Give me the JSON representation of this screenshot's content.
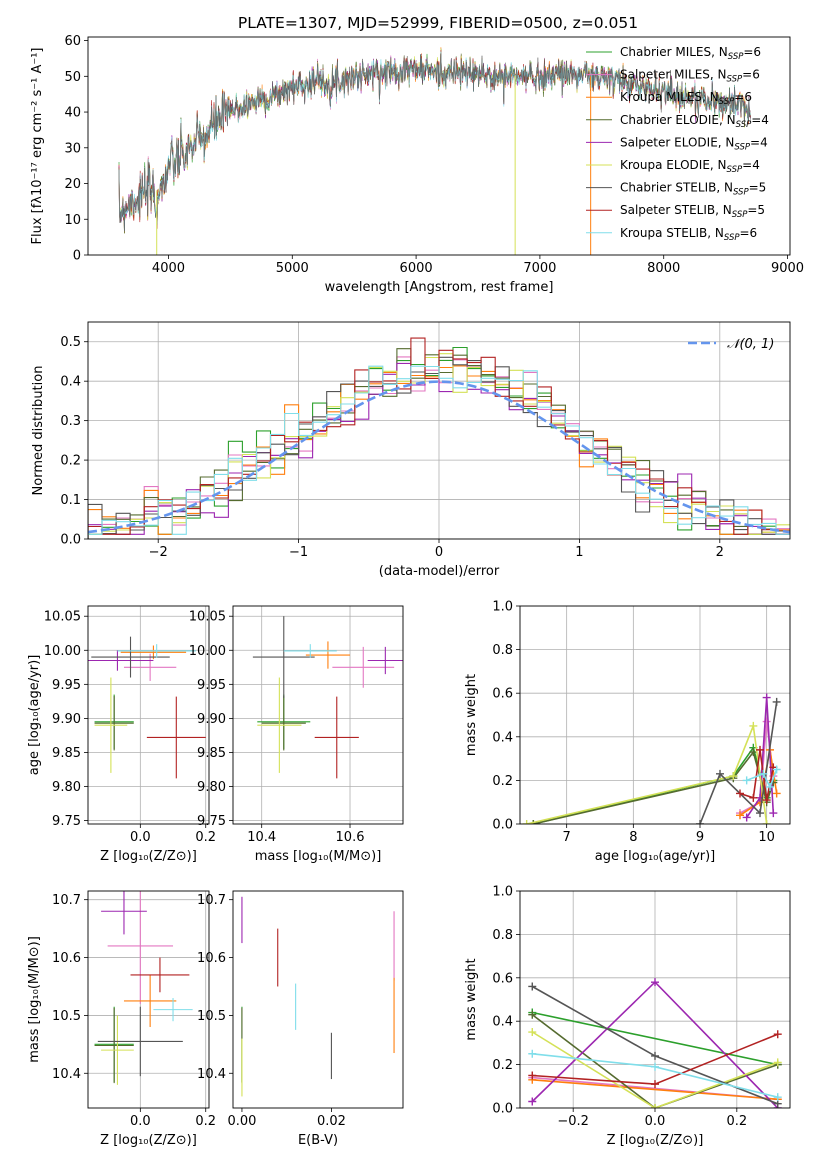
{
  "figure_title": "PLATE=1307, MJD=52999, FIBERID=0500, z=0.051",
  "model_colors": [
    "#2ca02c",
    "#e377c2",
    "#ff7f0e",
    "#556b2f",
    "#9c27b0",
    "#d4e157",
    "#555555",
    "#b22222",
    "#80deea"
  ],
  "chart_data": [
    {
      "id": "spectrum",
      "type": "line",
      "title": "PLATE=1307, MJD=52999, FIBERID=0500, z=0.051",
      "xlabel": "wavelength [Angstrom, rest frame]",
      "ylabel": "Flux [fλ10⁻¹⁷ erg cm⁻² s⁻¹ A⁻¹]",
      "xlim": [
        3350,
        9020
      ],
      "ylim": [
        0,
        61
      ],
      "xticks": [
        "4000",
        "5000",
        "6000",
        "7000",
        "8000",
        "9000"
      ],
      "yticks": [
        "0",
        "10",
        "20",
        "30",
        "40",
        "50",
        "60"
      ],
      "grid": false,
      "legend_position": "right",
      "legend": [
        {
          "label": "Chabrier MILES, N",
          "sub": "SSP",
          "tail": "=6"
        },
        {
          "label": "Salpeter MILES, N",
          "sub": "SSP",
          "tail": "=6"
        },
        {
          "label": "Kroupa MILES, N",
          "sub": "SSP",
          "tail": "=6"
        },
        {
          "label": "Chabrier ELODIE, N",
          "sub": "SSP",
          "tail": "=4"
        },
        {
          "label": "Salpeter ELODIE, N",
          "sub": "SSP",
          "tail": "=4"
        },
        {
          "label": "Kroupa ELODIE, N",
          "sub": "SSP",
          "tail": "=4"
        },
        {
          "label": "Chabrier STELIB, N",
          "sub": "SSP",
          "tail": "=5"
        },
        {
          "label": "Salpeter STELIB, N",
          "sub": "SSP",
          "tail": "=5"
        },
        {
          "label": "Kroupa STELIB, N",
          "sub": "SSP",
          "tail": "=6"
        }
      ],
      "continuum": {
        "x": [
          3600,
          3700,
          3800,
          3900,
          3950,
          4000,
          4100,
          4200,
          4300,
          4400,
          4500,
          4700,
          4900,
          5000,
          5100,
          5200,
          5300,
          5500,
          5700,
          5900,
          6000,
          6200,
          6400,
          6600,
          6800,
          7000,
          7200,
          7400,
          7600,
          7800,
          8000,
          8200,
          8400,
          8600,
          8700
        ],
        "y": [
          12,
          15,
          17,
          18,
          19,
          25,
          27,
          31,
          33,
          38,
          40,
          43,
          45,
          47,
          48,
          49,
          48,
          50,
          51,
          52,
          52,
          51,
          51,
          50,
          50,
          50,
          51,
          50,
          49,
          47,
          46,
          44,
          43,
          42,
          41
        ]
      },
      "dropouts": [
        {
          "x": 3905,
          "y": 0,
          "series": 5
        },
        {
          "x": 6800,
          "y": 0,
          "series": 5
        },
        {
          "x": 7410,
          "y": 0,
          "series": 2
        }
      ]
    },
    {
      "id": "residuals",
      "type": "histogram",
      "xlabel": "(data-model)/error",
      "ylabel": "Normed distribution",
      "xlim": [
        -2.5,
        2.5
      ],
      "ylim": [
        0,
        0.55
      ],
      "xticks": [
        "−2",
        "−1",
        "0",
        "1",
        "2"
      ],
      "yticks": [
        "0.0",
        "0.1",
        "0.2",
        "0.3",
        "0.4",
        "0.5"
      ],
      "grid": true,
      "legend_position": "top-right",
      "legend": "𝒩(0, 1)",
      "bins": {
        "start": -2.5,
        "width": 0.1,
        "count": 50
      },
      "reference_curve": {
        "type": "gaussian",
        "mu": 0,
        "sigma": 1
      }
    },
    {
      "id": "age-vs-Z",
      "type": "scatter",
      "xlabel": "Z [log₁₀(Z/Z⊙)]",
      "ylabel": "age  [log₁₀(age/yr)]",
      "xlim": [
        -0.16,
        0.21
      ],
      "ylim": [
        9.745,
        10.065
      ],
      "xticks": [
        "0.0",
        "0.2"
      ],
      "yticks": [
        "9.75",
        "9.80",
        "9.85",
        "9.90",
        "9.95",
        "10.00",
        "10.05"
      ],
      "grid": true,
      "points": [
        {
          "x": -0.08,
          "y": 9.895,
          "xerr": 0.06,
          "yerr": 0.04,
          "series": 0
        },
        {
          "x": 0.03,
          "y": 9.975,
          "xerr": 0.08,
          "yerr": 0.02,
          "series": 1
        },
        {
          "x": 0.04,
          "y": 9.997,
          "xerr": 0.1,
          "yerr": 0.01,
          "series": 2
        },
        {
          "x": -0.08,
          "y": 9.893,
          "xerr": 0.06,
          "yerr": 0.04,
          "series": 3
        },
        {
          "x": -0.07,
          "y": 9.985,
          "xerr": 0.11,
          "yerr": 0.015,
          "series": 4
        },
        {
          "x": -0.09,
          "y": 9.89,
          "xerr": 0.05,
          "yerr": 0.07,
          "series": 5
        },
        {
          "x": -0.03,
          "y": 9.99,
          "xerr": 0.12,
          "yerr": 0.03,
          "series": 6
        },
        {
          "x": 0.11,
          "y": 9.872,
          "xerr": 0.09,
          "yerr": 0.06,
          "series": 7
        },
        {
          "x": 0.05,
          "y": 9.999,
          "xerr": 0.12,
          "yerr": 0.01,
          "series": 8
        }
      ]
    },
    {
      "id": "age-vs-mass",
      "type": "scatter",
      "xlabel": "mass [log₁₀(M/M⊙)]",
      "ylabel": "",
      "xlim": [
        10.335,
        10.72
      ],
      "ylim": [
        9.745,
        10.065
      ],
      "xticks": [
        "10.4",
        "10.6"
      ],
      "yticks": [
        "9.75",
        "9.80",
        "9.85",
        "9.90",
        "9.95",
        "10.00",
        "10.05"
      ],
      "grid": true,
      "points": [
        {
          "x": 10.45,
          "y": 9.895,
          "xerr": 0.06,
          "yerr": 0.04,
          "series": 0
        },
        {
          "x": 10.63,
          "y": 9.975,
          "xerr": 0.07,
          "yerr": 0.03,
          "series": 1
        },
        {
          "x": 10.55,
          "y": 9.993,
          "xerr": 0.05,
          "yerr": 0.02,
          "series": 2
        },
        {
          "x": 10.45,
          "y": 9.893,
          "xerr": 0.05,
          "yerr": 0.04,
          "series": 3
        },
        {
          "x": 10.68,
          "y": 9.985,
          "xerr": 0.04,
          "yerr": 0.02,
          "series": 4
        },
        {
          "x": 10.44,
          "y": 9.89,
          "xerr": 0.05,
          "yerr": 0.07,
          "series": 5
        },
        {
          "x": 10.45,
          "y": 9.99,
          "xerr": 0.07,
          "yerr": 0.06,
          "series": 6
        },
        {
          "x": 10.57,
          "y": 9.872,
          "xerr": 0.05,
          "yerr": 0.06,
          "series": 7
        },
        {
          "x": 10.51,
          "y": 9.999,
          "xerr": 0.06,
          "yerr": 0.01,
          "series": 8
        }
      ]
    },
    {
      "id": "weight-vs-age",
      "type": "line",
      "xlabel": "age  [log₁₀(age/yr)]",
      "ylabel": "mass weight",
      "xlim": [
        6.3,
        10.35
      ],
      "ylim": [
        0,
        1
      ],
      "xticks": [
        "7",
        "8",
        "9",
        "10"
      ],
      "yticks": [
        "0.0",
        "0.2",
        "0.4",
        "0.6",
        "0.8",
        "1.0"
      ],
      "grid": true,
      "series": [
        {
          "x": [
            6.5,
            9.5,
            9.8,
            10.0,
            10.1
          ],
          "y": [
            0.0,
            0.22,
            0.35,
            0.12,
            0.2
          ],
          "series": 0
        },
        {
          "x": [
            9.6,
            9.9,
            10.0,
            10.1
          ],
          "y": [
            0.05,
            0.1,
            0.47,
            0.22
          ],
          "series": 1
        },
        {
          "x": [
            9.6,
            9.9,
            10.05,
            10.15
          ],
          "y": [
            0.04,
            0.1,
            0.34,
            0.14
          ],
          "series": 2
        },
        {
          "x": [
            6.5,
            9.5,
            9.8,
            10.0,
            10.1
          ],
          "y": [
            0.0,
            0.21,
            0.33,
            0.1,
            0.19
          ],
          "series": 3
        },
        {
          "x": [
            9.7,
            9.9,
            10.0,
            10.1
          ],
          "y": [
            0.03,
            0.12,
            0.58,
            0.05
          ],
          "series": 4
        },
        {
          "x": [
            6.4,
            9.5,
            9.8,
            10.0
          ],
          "y": [
            0.0,
            0.22,
            0.45,
            0.0
          ],
          "series": 5
        },
        {
          "x": [
            9.0,
            9.3,
            9.9,
            10.15
          ],
          "y": [
            0.0,
            0.23,
            0.05,
            0.56
          ],
          "series": 6
        },
        {
          "x": [
            9.6,
            9.8,
            9.9,
            10.0,
            10.1
          ],
          "y": [
            0.14,
            0.12,
            0.34,
            0.11,
            0.26
          ],
          "series": 7
        },
        {
          "x": [
            9.7,
            9.95,
            10.05,
            10.15
          ],
          "y": [
            0.2,
            0.23,
            0.17,
            0.25
          ],
          "series": 8
        }
      ]
    },
    {
      "id": "mass-vs-Z",
      "type": "scatter",
      "xlabel": "Z [log₁₀(Z/Z⊙)]",
      "ylabel": "mass [log₁₀(M/M⊙)]",
      "xlim": [
        -0.16,
        0.21
      ],
      "ylim": [
        10.34,
        10.715
      ],
      "xticks": [
        "0.0",
        "0.2"
      ],
      "yticks": [
        "10.4",
        "10.5",
        "10.6",
        "10.7"
      ],
      "grid": true,
      "points": [
        {
          "x": -0.08,
          "y": 10.45,
          "xerr": 0.06,
          "yerr": 0.065,
          "series": 0
        },
        {
          "x": 0.0,
          "y": 10.62,
          "xerr": 0.1,
          "yerr": 0.1,
          "series": 1
        },
        {
          "x": 0.03,
          "y": 10.525,
          "xerr": 0.08,
          "yerr": 0.045,
          "series": 2
        },
        {
          "x": -0.08,
          "y": 10.448,
          "xerr": 0.06,
          "yerr": 0.065,
          "series": 3
        },
        {
          "x": -0.05,
          "y": 10.68,
          "xerr": 0.07,
          "yerr": 0.04,
          "series": 4
        },
        {
          "x": -0.07,
          "y": 10.44,
          "xerr": 0.05,
          "yerr": 0.06,
          "series": 5
        },
        {
          "x": 0.0,
          "y": 10.455,
          "xerr": 0.13,
          "yerr": 0.06,
          "series": 6
        },
        {
          "x": 0.06,
          "y": 10.57,
          "xerr": 0.09,
          "yerr": 0.03,
          "series": 7
        },
        {
          "x": 0.1,
          "y": 10.51,
          "xerr": 0.06,
          "yerr": 0.02,
          "series": 8
        }
      ]
    },
    {
      "id": "mass-vs-EBV",
      "type": "scatter",
      "xlabel": "E(B-V)",
      "ylabel": "",
      "xlim": [
        -0.002,
        0.036
      ],
      "ylim": [
        10.34,
        10.715
      ],
      "xticks": [
        "0.00",
        "0.02"
      ],
      "yticks": [
        "10.4",
        "10.5",
        "10.6",
        "10.7"
      ],
      "grid": false,
      "points": [
        {
          "x": 0.0,
          "y": 10.45,
          "yerr": 0.065,
          "series": 0
        },
        {
          "x": 0.034,
          "y": 10.62,
          "yerr": 0.06,
          "series": 1
        },
        {
          "x": 0.034,
          "y": 10.5,
          "yerr": 0.065,
          "series": 2
        },
        {
          "x": 0.0,
          "y": 10.448,
          "yerr": 0.065,
          "series": 3
        },
        {
          "x": 0.0,
          "y": 10.665,
          "yerr": 0.04,
          "series": 4
        },
        {
          "x": 0.0,
          "y": 10.41,
          "yerr": 0.05,
          "series": 5
        },
        {
          "x": 0.02,
          "y": 10.43,
          "yerr": 0.04,
          "series": 6
        },
        {
          "x": 0.008,
          "y": 10.6,
          "yerr": 0.05,
          "series": 7
        },
        {
          "x": 0.012,
          "y": 10.515,
          "yerr": 0.04,
          "series": 8
        }
      ]
    },
    {
      "id": "weight-vs-Z",
      "type": "line",
      "xlabel": "Z [log₁₀(Z/Z⊙)]",
      "ylabel": "mass weight",
      "xlim": [
        -0.33,
        0.33
      ],
      "ylim": [
        0,
        1
      ],
      "xticks": [
        "−0.2",
        "0.0",
        "0.2"
      ],
      "yticks": [
        "0.0",
        "0.2",
        "0.4",
        "0.6",
        "0.8",
        "1.0"
      ],
      "grid": true,
      "series": [
        {
          "x": [
            -0.3,
            0.3
          ],
          "y": [
            0.44,
            0.2
          ],
          "series": 0
        },
        {
          "x": [
            -0.3,
            0.3
          ],
          "y": [
            0.14,
            0.04
          ],
          "series": 1
        },
        {
          "x": [
            -0.3,
            0.3
          ],
          "y": [
            0.13,
            0.04
          ],
          "series": 2
        },
        {
          "x": [
            -0.3,
            0.0,
            0.3
          ],
          "y": [
            0.43,
            0.0,
            0.2
          ],
          "series": 3
        },
        {
          "x": [
            -0.3,
            0.0,
            0.3
          ],
          "y": [
            0.03,
            0.58,
            0.0
          ],
          "series": 4
        },
        {
          "x": [
            -0.3,
            0.0,
            0.3
          ],
          "y": [
            0.35,
            0.0,
            0.21
          ],
          "series": 5
        },
        {
          "x": [
            -0.3,
            0.0,
            0.3
          ],
          "y": [
            0.56,
            0.24,
            0.02
          ],
          "series": 6
        },
        {
          "x": [
            -0.3,
            0.0,
            0.3
          ],
          "y": [
            0.15,
            0.11,
            0.34
          ],
          "series": 7
        },
        {
          "x": [
            -0.3,
            0.0,
            0.3
          ],
          "y": [
            0.25,
            0.19,
            0.05
          ],
          "series": 8
        }
      ]
    }
  ]
}
